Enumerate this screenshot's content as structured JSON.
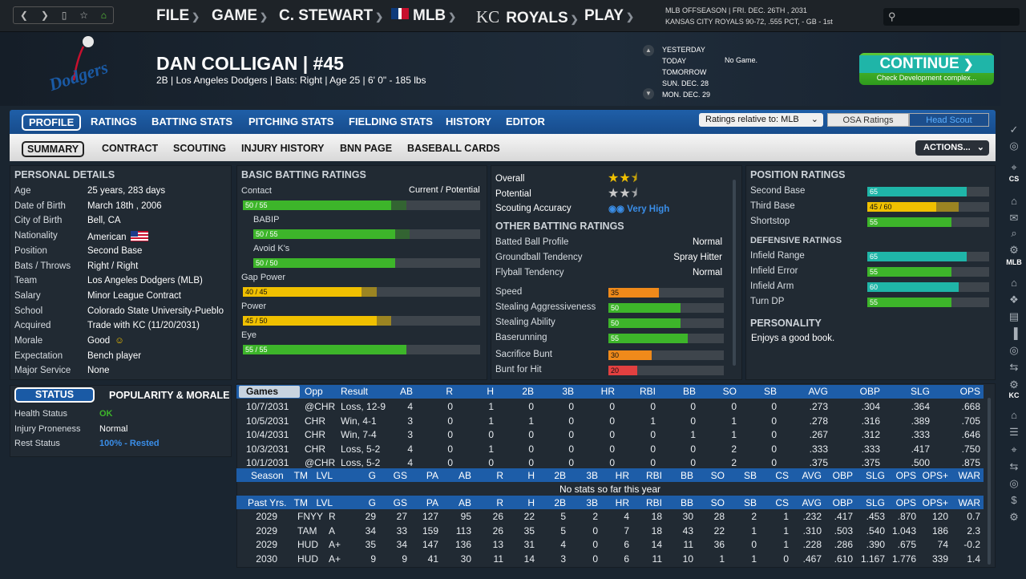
{
  "topbar": {
    "menus": [
      {
        "label": "FILE"
      },
      {
        "label": "GAME"
      },
      {
        "label": "C. STEWART"
      },
      {
        "label": "MLB"
      },
      {
        "label": "ROYALS"
      },
      {
        "label": "PLAY"
      }
    ],
    "kc_logo": "KC",
    "status_line1": "MLB OFFSEASON  |  FRI. DEC. 26TH , 2031",
    "status_line2": "KANSAS CITY ROYALS   90-72, .555 PCT, - GB - 1st"
  },
  "player": {
    "name": "DAN COLLIGAN  |  #45",
    "info": "2B | Los Angeles Dodgers  |  Bats: Right  |  Age 25  |  6' 0\" - 185 lbs",
    "team_logo_text": "Dodgers"
  },
  "schedule": {
    "days": [
      "YESTERDAY",
      "TODAY",
      "TOMORROW",
      "SUN. DEC. 28",
      "MON. DEC. 29"
    ],
    "today_game": "No Game."
  },
  "continue": {
    "label": "CONTINUE",
    "sub": "Check Development complex..."
  },
  "tabs1": [
    "PROFILE",
    "RATINGS",
    "BATTING STATS",
    "PITCHING STATS",
    "FIELDING STATS",
    "HISTORY",
    "EDITOR"
  ],
  "ratings_relative": "Ratings relative to: MLB",
  "osa_label": "OSA Ratings",
  "scout_label": "Head Scout",
  "tabs2": [
    "SUMMARY",
    "CONTRACT",
    "SCOUTING",
    "INJURY HISTORY",
    "BNN PAGE",
    "BASEBALL CARDS"
  ],
  "actions_label": "ACTIONS...",
  "personal": {
    "title": "PERSONAL DETAILS",
    "rows": [
      [
        "Age",
        "25 years, 283 days"
      ],
      [
        "Date of Birth",
        "March 18th , 2006"
      ],
      [
        "City of Birth",
        "Bell, CA"
      ],
      [
        "Nationality",
        "American"
      ],
      [
        "Position",
        "Second Base"
      ],
      [
        "Bats / Throws",
        "Right / Right"
      ],
      [
        "Team",
        "Los Angeles Dodgers (MLB)"
      ],
      [
        "Salary",
        "Minor League Contract"
      ],
      [
        "School",
        "Colorado State University-Pueblo"
      ],
      [
        "Acquired",
        "Trade with KC (11/20/2031)"
      ],
      [
        "Morale",
        "Good"
      ],
      [
        "Expectation",
        "Bench player"
      ],
      [
        "Major Service",
        "None"
      ]
    ]
  },
  "status": {
    "tab_status": "STATUS",
    "tab_pop": "POPULARITY & MORALE",
    "rows": [
      [
        "Health Status",
        "OK"
      ],
      [
        "Injury Proneness",
        "Normal"
      ],
      [
        "Rest Status",
        "100% - Rested"
      ]
    ]
  },
  "batting": {
    "title": "BASIC BATTING RATINGS",
    "contact_label": "Contact",
    "cp_label": "Current / Potential",
    "items": [
      {
        "label": "Contact",
        "value": "50 / 55",
        "cur": 50,
        "pot": 55,
        "color": "g"
      },
      {
        "label": "BABIP",
        "value": "50 / 55",
        "cur": 50,
        "pot": 55,
        "color": "g"
      },
      {
        "label": "Avoid K's",
        "value": "50 / 50",
        "cur": 50,
        "pot": 50,
        "color": "g"
      },
      {
        "label": "Gap Power",
        "value": "40 / 45",
        "cur": 40,
        "pot": 45,
        "color": "y"
      },
      {
        "label": "Power",
        "value": "45 / 50",
        "cur": 45,
        "pot": 50,
        "color": "y"
      },
      {
        "label": "Eye",
        "value": "55 / 55",
        "cur": 55,
        "pot": 55,
        "color": "g"
      }
    ]
  },
  "summary": {
    "overall_label": "Overall",
    "overall_stars": 2.5,
    "potential_label": "Potential",
    "potential_stars": 2.5,
    "accuracy_label": "Scouting Accuracy",
    "accuracy_value": "Very High",
    "other_title": "OTHER BATTING RATINGS",
    "other": [
      [
        "Batted Ball Profile",
        "Normal"
      ],
      [
        "Groundball Tendency",
        "Spray Hitter"
      ],
      [
        "Flyball Tendency",
        "Normal"
      ]
    ],
    "running": [
      {
        "label": "Speed",
        "value": 35,
        "color": "o"
      },
      {
        "label": "Stealing Aggressiveness",
        "value": 50,
        "color": "g"
      },
      {
        "label": "Stealing Ability",
        "value": 50,
        "color": "g"
      },
      {
        "label": "Baserunning",
        "value": 55,
        "color": "g"
      },
      {
        "label": "Sacrifice Bunt",
        "value": 30,
        "color": "o"
      },
      {
        "label": "Bunt for Hit",
        "value": 20,
        "color": "r"
      }
    ]
  },
  "position": {
    "title": "POSITION RATINGS",
    "items": [
      {
        "label": "Second Base",
        "value": "65",
        "cur": 65,
        "pot": 65,
        "color": "t"
      },
      {
        "label": "Third Base",
        "value": "45 / 60",
        "cur": 45,
        "pot": 60,
        "color": "y"
      },
      {
        "label": "Shortstop",
        "value": "55",
        "cur": 55,
        "pot": 55,
        "color": "g"
      }
    ],
    "def_title": "DEFENSIVE RATINGS",
    "def": [
      {
        "label": "Infield Range",
        "value": "65",
        "cur": 65,
        "color": "t"
      },
      {
        "label": "Infield Error",
        "value": "55",
        "cur": 55,
        "color": "g"
      },
      {
        "label": "Infield Arm",
        "value": "60",
        "cur": 60,
        "color": "t"
      },
      {
        "label": "Turn DP",
        "value": "55",
        "cur": 55,
        "color": "g"
      }
    ],
    "pers_title": "PERSONALITY",
    "pers_text": "Enjoys a good book."
  },
  "games": {
    "headers": [
      "Games",
      "Opp",
      "Result",
      "AB",
      "R",
      "H",
      "2B",
      "3B",
      "HR",
      "RBI",
      "BB",
      "SO",
      "SB",
      "AVG",
      "OBP",
      "SLG",
      "OPS"
    ],
    "rows": [
      [
        "10/7/2031",
        "@CHR",
        "Loss, 12-9",
        "4",
        "0",
        "1",
        "0",
        "0",
        "0",
        "0",
        "0",
        "0",
        "0",
        ".273",
        ".304",
        ".364",
        ".668"
      ],
      [
        "10/5/2031",
        "CHR",
        "Win, 4-1",
        "3",
        "0",
        "1",
        "1",
        "0",
        "0",
        "1",
        "0",
        "1",
        "0",
        ".278",
        ".316",
        ".389",
        ".705"
      ],
      [
        "10/4/2031",
        "CHR",
        "Win, 7-4",
        "3",
        "0",
        "0",
        "0",
        "0",
        "0",
        "0",
        "1",
        "1",
        "0",
        ".267",
        ".312",
        ".333",
        ".646"
      ],
      [
        "10/3/2031",
        "CHR",
        "Loss, 5-2",
        "4",
        "0",
        "1",
        "0",
        "0",
        "0",
        "0",
        "0",
        "2",
        "0",
        ".333",
        ".333",
        ".417",
        ".750"
      ],
      [
        "10/1/2031",
        "@CHR",
        "Loss, 5-2",
        "4",
        "0",
        "0",
        "0",
        "0",
        "0",
        "0",
        "0",
        "2",
        "0",
        ".375",
        ".375",
        ".500",
        ".875"
      ]
    ]
  },
  "season": {
    "headers": [
      "Season",
      "TM",
      "LVL",
      "G",
      "GS",
      "PA",
      "AB",
      "R",
      "H",
      "2B",
      "3B",
      "HR",
      "RBI",
      "BB",
      "SO",
      "SB",
      "CS",
      "AVG",
      "OBP",
      "SLG",
      "OPS",
      "OPS+",
      "WAR"
    ],
    "empty": "No stats so far this year"
  },
  "past": {
    "headers": [
      "Past Yrs.",
      "TM",
      "LVL",
      "G",
      "GS",
      "PA",
      "AB",
      "R",
      "H",
      "2B",
      "3B",
      "HR",
      "RBI",
      "BB",
      "SO",
      "SB",
      "CS",
      "AVG",
      "OBP",
      "SLG",
      "OPS",
      "OPS+",
      "WAR"
    ],
    "rows": [
      [
        "2029",
        "FNYY",
        "R",
        "29",
        "27",
        "127",
        "95",
        "26",
        "22",
        "5",
        "2",
        "4",
        "18",
        "30",
        "28",
        "2",
        "1",
        ".232",
        ".417",
        ".453",
        ".870",
        "120",
        "0.7"
      ],
      [
        "2029",
        "TAM",
        "A",
        "34",
        "33",
        "159",
        "113",
        "26",
        "35",
        "5",
        "0",
        "7",
        "18",
        "43",
        "22",
        "1",
        "1",
        ".310",
        ".503",
        ".540",
        "1.043",
        "186",
        "2.3"
      ],
      [
        "2029",
        "HUD",
        "A+",
        "35",
        "34",
        "147",
        "136",
        "13",
        "31",
        "4",
        "0",
        "6",
        "14",
        "11",
        "36",
        "0",
        "1",
        ".228",
        ".286",
        ".390",
        ".675",
        "74",
        "-0.2"
      ],
      [
        "2030",
        "HUD",
        "A+",
        "9",
        "9",
        "41",
        "30",
        "11",
        "14",
        "3",
        "0",
        "6",
        "11",
        "10",
        "1",
        "1",
        "0",
        ".467",
        ".610",
        "1.167",
        "1.776",
        "339",
        "1.4"
      ]
    ]
  },
  "sidebar": {
    "cs": "CS",
    "mlb": "MLB",
    "kc": "KC"
  },
  "colors": {
    "blue": "#1d5da8",
    "green": "#3db52a",
    "yellow": "#f0c000",
    "teal": "#1fb5a8",
    "orange": "#f08a1a",
    "red": "#e24040"
  }
}
